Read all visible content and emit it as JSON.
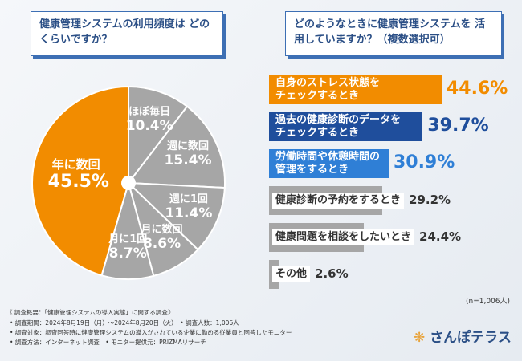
{
  "chart_data": [
    {
      "type": "pie",
      "title": "健康管理システムの利用頻度は どのくらいですか？",
      "slices": [
        {
          "label": "ほぼ毎日",
          "value": 10.4,
          "value_label": "10.4%",
          "color": "#a6a6a6",
          "text_color": "#ffffff"
        },
        {
          "label": "週に数回",
          "value": 15.4,
          "value_label": "15.4%",
          "color": "#a6a6a6",
          "text_color": "#ffffff"
        },
        {
          "label": "週に1回",
          "value": 11.4,
          "value_label": "11.4%",
          "color": "#a6a6a6",
          "text_color": "#ffffff"
        },
        {
          "label": "月に数回",
          "value": 8.6,
          "value_label": "8.6%",
          "color": "#a6a6a6",
          "text_color": "#ffffff"
        },
        {
          "label": "月に1回",
          "value": 8.7,
          "value_label": "8.7%",
          "color": "#a6a6a6",
          "text_color": "#ffffff"
        },
        {
          "label": "年に数回",
          "value": 45.5,
          "value_label": "45.5%",
          "color": "#f28c00",
          "text_color": "#ffffff"
        }
      ]
    },
    {
      "type": "bar",
      "orientation": "horizontal",
      "title": "どのようなときに健康管理システムを 活用していますか？（複数選択可）",
      "categories": [
        "自身のストレス状態を チェックするとき",
        "過去の健康診断のデータを チェックするとき",
        "労働時間や休憩時間の 管理をするとき",
        "健康診断の予約をするとき",
        "健康問題を相談をしたいとき",
        "その他"
      ],
      "values": [
        44.6,
        39.7,
        30.9,
        29.2,
        24.4,
        2.6
      ],
      "value_labels": [
        "44.6%",
        "39.7%",
        "30.9%",
        "29.2%",
        "24.4%",
        "2.6%"
      ],
      "colors": [
        "#f28c00",
        "#1f4e9c",
        "#2f7fd6",
        "#a6a6a6",
        "#a6a6a6",
        "#a6a6a6"
      ],
      "value_colors": [
        "#f28c00",
        "#1f4e9c",
        "#2f7fd6",
        "#333333",
        "#333333",
        "#333333"
      ],
      "sample_note": "(n=1,006人)"
    }
  ],
  "questions": {
    "q1": "健康管理システムの利用頻度は どのくらいですか？",
    "q2": "どのようなときに健康管理システムを 活用していますか？（複数選択可）"
  },
  "notes": [
    "《 調査概要：「健康管理システムの導入実態」に関する調査》",
    "• 調査期間：2024年8月19日（月）〜2024年8月20日（火）　• 調査人数：1,006人",
    "• 調査対象：調査回答時に健康管理システムの導入がされている企業に勤める従業員と回答したモニター",
    "• 調査方法：インターネット調査　• モニター提供元：PRIZMAリサーチ"
  ],
  "brand": "さんぽテラス",
  "colors": {
    "accent": "#f28c00",
    "navy": "#1f4e9c",
    "blue": "#2f7fd6",
    "gray": "#a6a6a6"
  }
}
